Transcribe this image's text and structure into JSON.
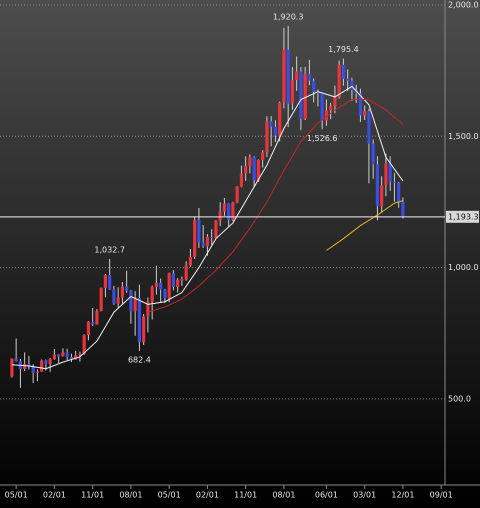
{
  "chart_data": {
    "type": "candlestick",
    "up_color": "#e8343a",
    "down_color": "#3a4fe0",
    "xlim": [
      -2.8,
      101.9
    ],
    "ylim": [
      172,
      2019
    ],
    "xticks": [
      {
        "value": 1,
        "label": "05/01"
      },
      {
        "value": 10,
        "label": "02/01"
      },
      {
        "value": 19,
        "label": "11/01"
      },
      {
        "value": 28,
        "label": "08/01"
      },
      {
        "value": 37,
        "label": "05/01"
      },
      {
        "value": 46,
        "label": "02/01"
      },
      {
        "value": 55,
        "label": "11/01"
      },
      {
        "value": 64,
        "label": "08/01"
      },
      {
        "value": 74,
        "label": "06/01"
      },
      {
        "value": 83,
        "label": "03/01"
      },
      {
        "value": 92,
        "label": "12/01"
      },
      {
        "value": 101,
        "label": "09/01"
      }
    ],
    "yticks": [
      {
        "value": 500,
        "label": "500.0"
      },
      {
        "value": 1000,
        "label": "1,000.0"
      },
      {
        "value": 1500,
        "label": "1,500.0"
      },
      {
        "value": 2000,
        "label": "2,000.0"
      }
    ],
    "grid": true,
    "open": [
      585,
      654,
      643,
      614,
      633,
      624,
      599,
      604,
      646,
      632,
      651,
      669,
      662,
      677,
      659,
      650,
      666,
      672,
      743,
      794,
      783,
      834,
      923,
      972,
      917,
      863,
      886,
      928,
      912,
      833,
      884,
      716,
      814,
      869,
      927,
      942,
      916,
      883,
      978,
      926,
      954,
      955,
      1008,
      1040,
      1182,
      1096,
      1081,
      1117,
      1113,
      1179,
      1213,
      1244,
      1181,
      1248,
      1308,
      1358,
      1387,
      1420,
      1332,
      1410,
      1439,
      1557,
      1536,
      1502,
      1628,
      1829,
      1624,
      1714,
      1747,
      1566,
      1738,
      1712,
      1669,
      1664,
      1560,
      1598,
      1615,
      1649,
      1772,
      1719,
      1712,
      1676,
      1663,
      1579,
      1596,
      1472,
      1393,
      1234,
      1314,
      1396,
      1327,
      1323,
      1250
    ],
    "high": [
      654,
      730,
      652,
      677,
      664,
      632,
      612,
      650,
      650,
      656,
      690,
      670,
      693,
      691,
      672,
      683,
      680,
      746,
      796,
      846,
      842,
      924,
      976,
      1032.7,
      930,
      925,
      945,
      988,
      915,
      910,
      935,
      823,
      886,
      932,
      1007,
      958,
      919,
      981,
      990,
      960,
      966,
      1024,
      1071,
      1195,
      1227,
      1162,
      1128,
      1146,
      1181,
      1249,
      1265,
      1245,
      1251,
      1310,
      1388,
      1424,
      1431,
      1424,
      1412,
      1447,
      1576,
      1577,
      1561,
      1632,
      1913,
      1920.3,
      1764,
      1804,
      1763,
      1764,
      1791,
      1720,
      1678,
      1665,
      1640,
      1627,
      1693,
      1788,
      1795.4,
      1755,
      1723,
      1696,
      1681,
      1617,
      1605,
      1488,
      1424,
      1348,
      1434,
      1424,
      1361,
      1326,
      1267
    ],
    "low": [
      581,
      642,
      542,
      606,
      612,
      560,
      567,
      603,
      608,
      603,
      649,
      637,
      661,
      648,
      640,
      649,
      642,
      668,
      723,
      777,
      783,
      834,
      887,
      915,
      858,
      848,
      863,
      904,
      786,
      740,
      682.4,
      705,
      753,
      802,
      897,
      866,
      865,
      868,
      913,
      905,
      931,
      950,
      1003,
      1033,
      1075,
      1075,
      1045,
      1087,
      1111,
      1158,
      1196,
      1155,
      1177,
      1245,
      1306,
      1330,
      1359,
      1309,
      1326,
      1381,
      1421,
      1462,
      1478,
      1480,
      1607,
      1535,
      1601,
      1673,
      1523,
      1562,
      1695,
      1629,
      1614,
      1526.6,
      1540,
      1565,
      1588,
      1643,
      1693,
      1672,
      1635,
      1627,
      1555,
      1562,
      1321,
      1338,
      1180,
      1208,
      1272,
      1292,
      1251,
      1228,
      1187
    ],
    "close": [
      654,
      643,
      614,
      633,
      624,
      599,
      604,
      646,
      632,
      651,
      669,
      662,
      677,
      659,
      650,
      666,
      672,
      743,
      794,
      783,
      834,
      923,
      972,
      917,
      863,
      886,
      928,
      912,
      833,
      884,
      716,
      814,
      869,
      927,
      942,
      916,
      883,
      978,
      926,
      954,
      955,
      1008,
      1040,
      1182,
      1096,
      1081,
      1117,
      1113,
      1179,
      1213,
      1244,
      1181,
      1248,
      1308,
      1358,
      1387,
      1420,
      1332,
      1410,
      1439,
      1557,
      1536,
      1502,
      1628,
      1829,
      1624,
      1714,
      1747,
      1566,
      1738,
      1712,
      1669,
      1664,
      1560,
      1598,
      1615,
      1649,
      1772,
      1719,
      1712,
      1676,
      1663,
      1579,
      1596,
      1472,
      1393,
      1234,
      1314,
      1396,
      1327,
      1323,
      1250,
      1193.3
    ],
    "moving_averages": [
      {
        "color": "#f2f2f2",
        "x": [
          0,
          4,
          8,
          12,
          16,
          20,
          24,
          28,
          32,
          36,
          40,
          44,
          48,
          52,
          56,
          60,
          64,
          68,
          72,
          76,
          80,
          84,
          88,
          92
        ],
        "values": [
          630,
          625,
          615,
          640,
          660,
          720,
          830,
          890,
          860,
          870,
          905,
          1000,
          1110,
          1170,
          1280,
          1390,
          1530,
          1640,
          1670,
          1650,
          1690,
          1620,
          1420,
          1330
        ]
      },
      {
        "color": "#c0282c",
        "x": [
          32,
          36,
          40,
          44,
          48,
          52,
          56,
          60,
          64,
          68,
          72,
          76,
          80,
          84,
          88,
          92
        ],
        "values": [
          830,
          850,
          880,
          930,
          990,
          1060,
          1150,
          1250,
          1370,
          1480,
          1550,
          1600,
          1640,
          1640,
          1600,
          1545
        ]
      },
      {
        "color": "#e8b020",
        "x": [
          74,
          78,
          82,
          86,
          90,
          92
        ],
        "values": [
          1065,
          1110,
          1160,
          1200,
          1245,
          1255
        ]
      }
    ],
    "last_price": {
      "value": 1193.3,
      "label": "1,193.3"
    },
    "annotations": [
      {
        "text": "1,920.3",
        "index": 65,
        "at": "high"
      },
      {
        "text": "1,795.4",
        "index": 78,
        "at": "high"
      },
      {
        "text": "1,526.6",
        "index": 73,
        "at": "low"
      },
      {
        "text": "1,032.7",
        "index": 23,
        "at": "high"
      },
      {
        "text": "682.4",
        "index": 30,
        "at": "low"
      }
    ]
  }
}
